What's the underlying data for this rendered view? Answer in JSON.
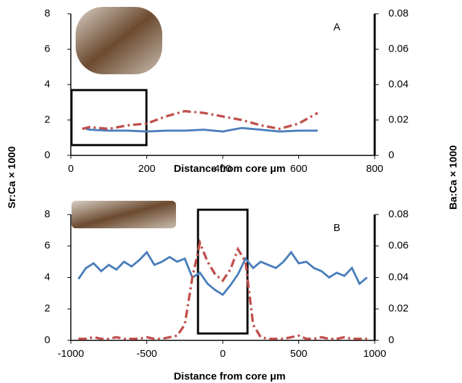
{
  "chart_data": [
    {
      "type": "line",
      "annotation": "A",
      "xlabel": "Distance from core μm",
      "ylabel": "Sr:Ca × 1000",
      "y2label": "Ba:Ca × 1000",
      "xlim": [
        0,
        800
      ],
      "xticks": [
        0,
        200,
        400,
        600,
        800
      ],
      "ylim": [
        0,
        8
      ],
      "yticks": [
        0,
        2,
        4,
        6,
        8
      ],
      "y2lim": [
        0,
        0.08
      ],
      "y2ticks": [
        0,
        0.02,
        0.04,
        0.06,
        0.08
      ],
      "series": [
        {
          "color": "#4a7ebb",
          "linestyle": "solid",
          "x": [
            40,
            50,
            100,
            150,
            200,
            250,
            300,
            350,
            400,
            450,
            500,
            550,
            600,
            650
          ],
          "values": [
            1.5,
            1.45,
            1.4,
            1.4,
            1.35,
            1.4,
            1.4,
            1.45,
            1.35,
            1.55,
            1.45,
            1.35,
            1.4,
            1.4
          ]
        },
        {
          "color": "#c0504d",
          "linestyle": "dashdot",
          "axis": "y2",
          "x": [
            30,
            50,
            100,
            150,
            200,
            250,
            300,
            350,
            400,
            450,
            500,
            550,
            600,
            650
          ],
          "values": [
            0.015,
            0.016,
            0.015,
            0.017,
            0.018,
            0.022,
            0.025,
            0.024,
            0.022,
            0.02,
            0.017,
            0.015,
            0.018,
            0.024
          ]
        }
      ]
    },
    {
      "type": "line",
      "annotation": "B",
      "xlabel": "Distance from core μm",
      "xlim": [
        -1000,
        1000
      ],
      "xticks": [
        -1000,
        -500,
        0,
        500,
        1000
      ],
      "ylim": [
        0,
        8
      ],
      "yticks": [
        0,
        2,
        4,
        6,
        8
      ],
      "y2lim": [
        0,
        0.08
      ],
      "y2ticks": [
        0,
        0.02,
        0.04,
        0.06,
        0.08
      ],
      "series": [
        {
          "color": "#4a7ebb",
          "linestyle": "solid",
          "x": [
            -950,
            -900,
            -850,
            -800,
            -750,
            -700,
            -650,
            -600,
            -550,
            -500,
            -450,
            -400,
            -350,
            -300,
            -250,
            -200,
            -150,
            -100,
            -50,
            0,
            50,
            100,
            150,
            200,
            250,
            300,
            350,
            400,
            450,
            500,
            550,
            600,
            650,
            700,
            750,
            800,
            850,
            900,
            950
          ],
          "values": [
            3.9,
            4.6,
            4.9,
            4.4,
            4.8,
            4.5,
            5.0,
            4.7,
            5.1,
            5.6,
            4.8,
            5.0,
            5.3,
            5.0,
            5.2,
            4.0,
            4.3,
            3.6,
            3.2,
            2.9,
            3.5,
            4.2,
            5.2,
            4.6,
            5.0,
            4.8,
            4.6,
            5.0,
            5.6,
            4.9,
            5.0,
            4.6,
            4.4,
            4.0,
            4.3,
            4.1,
            4.6,
            3.6,
            4.0
          ]
        },
        {
          "color": "#c0504d",
          "linestyle": "dashdot",
          "axis": "y2",
          "x": [
            -950,
            -900,
            -850,
            -800,
            -750,
            -700,
            -650,
            -600,
            -550,
            -500,
            -450,
            -400,
            -350,
            -300,
            -250,
            -200,
            -150,
            -100,
            -50,
            0,
            50,
            100,
            150,
            200,
            250,
            300,
            350,
            400,
            450,
            500,
            550,
            600,
            650,
            700,
            750,
            800,
            850,
            900,
            950
          ],
          "values": [
            0.001,
            0.001,
            0.002,
            0.001,
            0.001,
            0.002,
            0.001,
            0.001,
            0.001,
            0.002,
            0.001,
            0.001,
            0.002,
            0.003,
            0.01,
            0.04,
            0.062,
            0.05,
            0.042,
            0.038,
            0.045,
            0.058,
            0.05,
            0.01,
            0.002,
            0.001,
            0.001,
            0.001,
            0.002,
            0.003,
            0.001,
            0.001,
            0.002,
            0.001,
            0.001,
            0.002,
            0.001,
            0.001,
            0.001
          ]
        }
      ]
    }
  ]
}
